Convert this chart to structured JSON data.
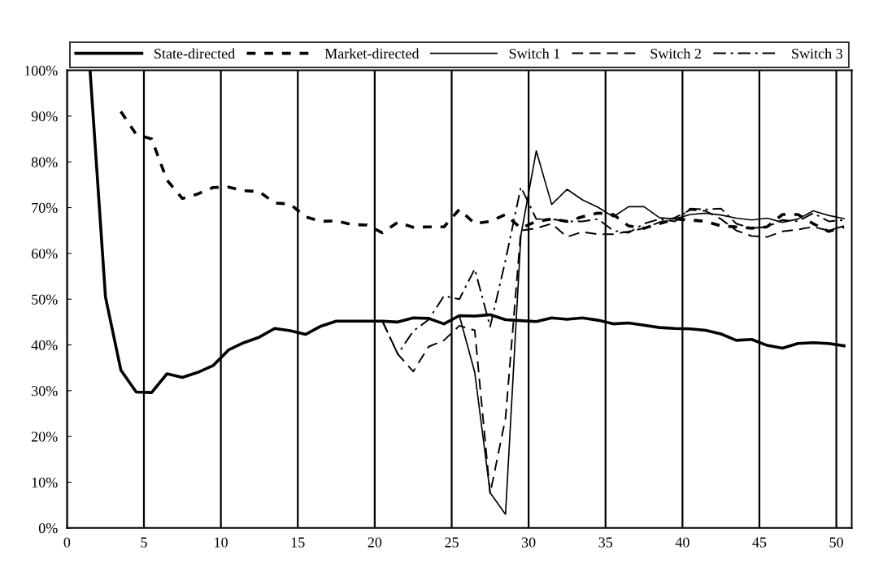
{
  "chart_data": {
    "type": "line",
    "xlim": [
      0,
      51
    ],
    "xticks": [
      0,
      5,
      10,
      15,
      20,
      25,
      30,
      35,
      40,
      45,
      50
    ],
    "ylim": [
      0,
      100
    ],
    "yticks": [
      {
        "value": 0,
        "label": "0%"
      },
      {
        "value": 10,
        "label": "10%"
      },
      {
        "value": 20,
        "label": "20%"
      },
      {
        "value": 30,
        "label": "30%"
      },
      {
        "value": 40,
        "label": "40%"
      },
      {
        "value": 50,
        "label": "50%"
      },
      {
        "value": 60,
        "label": "60%"
      },
      {
        "value": 70,
        "label": "70%"
      },
      {
        "value": 80,
        "label": "80%"
      },
      {
        "value": 90,
        "label": "90%"
      },
      {
        "value": 100,
        "label": "100%"
      }
    ],
    "grid": "x",
    "legend": "top",
    "marker": "none",
    "series": [
      {
        "name": "State-directed",
        "color": "#000000",
        "line_style": "solid",
        "x": [
          1.5,
          2.5,
          3.5,
          4.5,
          5.5,
          6.5,
          7.5,
          8.5,
          9.5,
          10.5,
          11.5,
          12.5,
          13.5,
          14.5,
          15.5,
          16.5,
          17.5,
          18.5,
          19.5,
          20.5,
          21.5,
          22.5,
          23.5,
          24.5,
          25.5,
          26.5,
          27.5,
          28.5,
          29.5,
          30.5,
          31.5,
          32.5,
          33.5,
          34.5,
          35.5,
          36.5,
          37.5,
          38.5,
          39.5,
          40.5,
          41.5,
          42.5,
          43.5,
          44.5,
          45.5,
          46.5,
          47.5,
          48.5,
          49.5,
          50.5
        ],
        "values": [
          100,
          50.5,
          34.5,
          29.7,
          29.6,
          33.7,
          32.9,
          34.0,
          35.5,
          38.9,
          40.5,
          41.7,
          43.6,
          43.1,
          42.3,
          44.1,
          45.2,
          45.2,
          45.2,
          45.2,
          45.0,
          45.9,
          45.8,
          44.6,
          46.4,
          46.3,
          46.6,
          45.5,
          45.3,
          45.1,
          45.9,
          45.6,
          45.9,
          45.4,
          44.6,
          44.8,
          44.3,
          43.8,
          43.6,
          43.5,
          43.2,
          42.4,
          41.0,
          41.2,
          39.9,
          39.3,
          40.3,
          40.5,
          40.3,
          39.8
        ]
      },
      {
        "name": "Market-directed",
        "color": "#000000",
        "line_style": "dashed",
        "x": [
          3.5,
          4.5,
          5.5,
          6.5,
          7.5,
          8.5,
          9.5,
          10.5,
          11.5,
          12.5,
          13.5,
          14.5,
          15.5,
          16.5,
          17.5,
          18.5,
          19.5,
          20.5,
          21.5,
          22.5,
          23.5,
          24.5,
          25.5,
          26.5,
          27.5,
          28.5,
          29.5,
          30.5,
          31.5,
          32.5,
          33.5,
          34.5,
          35.5,
          36.5,
          37.5,
          38.5,
          39.5,
          40.5,
          41.5,
          42.5,
          43.5,
          44.5,
          45.5,
          46.5,
          47.5,
          48.5,
          49.5,
          50.5
        ],
        "values": [
          91,
          86,
          85,
          76,
          72,
          73,
          74.4,
          74.5,
          73.7,
          73.5,
          71,
          70.8,
          68,
          67,
          67.1,
          66.3,
          66.2,
          64.5,
          66.8,
          65.7,
          65.8,
          65.8,
          69.6,
          66.5,
          67,
          68.5,
          65.5,
          67,
          67.5,
          67,
          68,
          68.8,
          68.5,
          66,
          65.5,
          66.5,
          67.5,
          67.3,
          67,
          66,
          65.8,
          65.5,
          65.8,
          68.5,
          68.5,
          66.5,
          64.8,
          65.8
        ]
      },
      {
        "name": "Switch 1",
        "color": "#000000",
        "line_style": "solid",
        "x": [
          25.5,
          26.5,
          27.5,
          28.5,
          29.5,
          30.5,
          31.5,
          32.5,
          33.5,
          34.5,
          35.5,
          36.5,
          37.5,
          38.5,
          39.5,
          40.5,
          41.5,
          42.5,
          43.5,
          44.5,
          45.5,
          46.5,
          47.5,
          48.5,
          49.5,
          50.5
        ],
        "values": [
          46.4,
          34,
          7.7,
          3.0,
          64,
          82.4,
          70.7,
          74,
          71.7,
          70.1,
          68,
          70.2,
          70.2,
          67.8,
          67.5,
          68.5,
          68.8,
          68.4,
          67.7,
          67.3,
          67.7,
          66.8,
          67.5,
          69.3,
          68.3,
          67.6
        ]
      },
      {
        "name": "Switch 2",
        "color": "#000000",
        "line_style": "longdash",
        "x": [
          20.5,
          21.5,
          22.5,
          23.5,
          24.5,
          25.5,
          26.5,
          27.5,
          28.5,
          29.5,
          30.5,
          31.5,
          32.5,
          33.5,
          34.5,
          35.5,
          36.5,
          37.5,
          38.5,
          39.5,
          40.5,
          41.5,
          42.5,
          43.5,
          44.5,
          45.5,
          46.5,
          47.5,
          48.5,
          49.5,
          50.5
        ],
        "values": [
          45.2,
          38,
          34.2,
          39.6,
          41,
          44.2,
          43.2,
          7.5,
          24,
          65,
          65.5,
          66.5,
          63.6,
          64.7,
          64.2,
          64.2,
          64.8,
          65.5,
          66.8,
          67.8,
          69.5,
          69.3,
          67.5,
          65,
          63.8,
          63.6,
          64.8,
          65.2,
          65.8,
          65,
          66
        ]
      },
      {
        "name": "Switch 3",
        "color": "#000000",
        "line_style": "dashdot",
        "x": [
          20.5,
          21.5,
          22.5,
          23.5,
          24.5,
          25.5,
          26.5,
          27.5,
          28.5,
          29.5,
          30.5,
          31.5,
          32.5,
          33.5,
          34.5,
          35.5,
          36.5,
          37.5,
          38.5,
          39.5,
          40.5,
          41.5,
          42.5,
          43.5,
          44.5,
          45.5,
          46.5,
          47.5,
          48.5,
          49.5,
          50.5
        ],
        "values": [
          45.2,
          38,
          43,
          45.5,
          50.7,
          50,
          56.6,
          44,
          58.5,
          74.5,
          67.5,
          67.5,
          67,
          67,
          67.5,
          65,
          64.5,
          66.5,
          67.5,
          67,
          69.8,
          69.6,
          69.8,
          66.5,
          65.5,
          65.8,
          67.3,
          67,
          68.8,
          67,
          67.3
        ]
      }
    ]
  }
}
